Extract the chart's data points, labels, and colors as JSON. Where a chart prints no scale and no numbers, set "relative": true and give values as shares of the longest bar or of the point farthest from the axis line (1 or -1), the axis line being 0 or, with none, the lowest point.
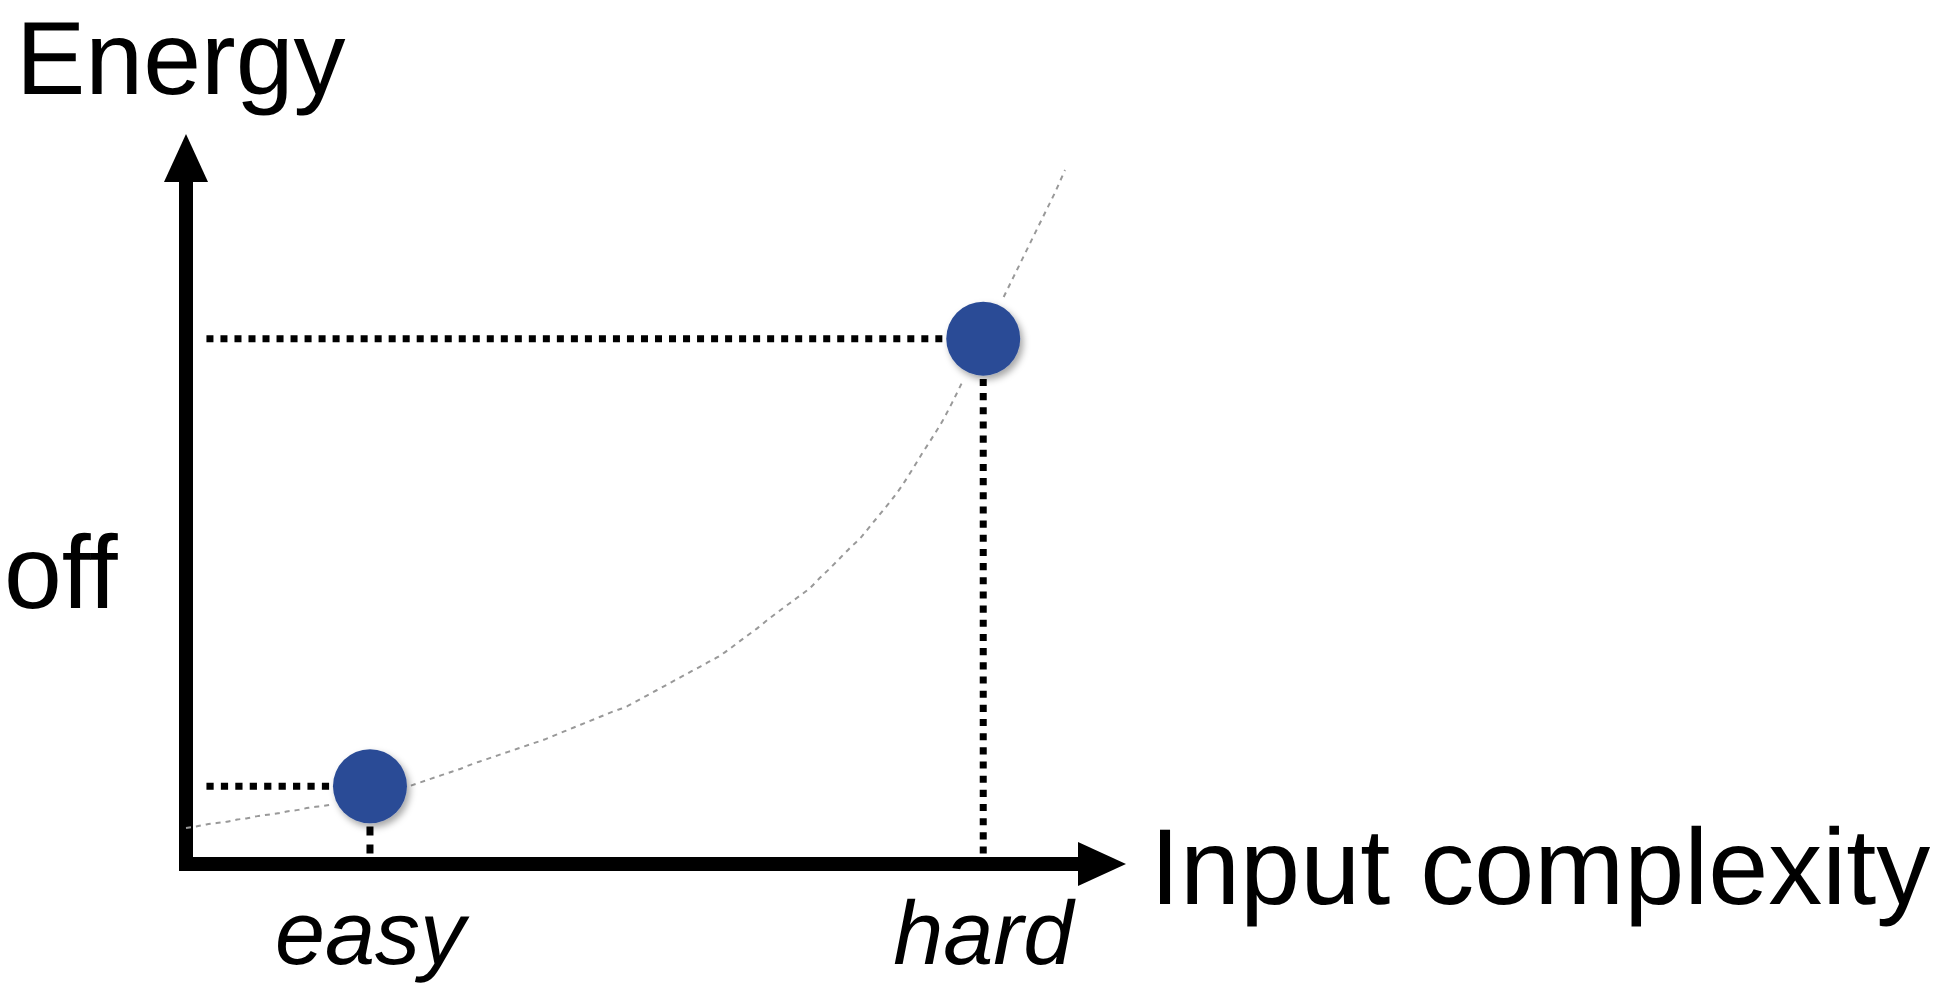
{
  "chart_data": {
    "type": "line",
    "relative": true,
    "xlabel": "Input complexity",
    "ylabel": "Energy",
    "annotations": [
      "off"
    ],
    "tick_labels": "x",
    "categories": [
      null,
      null,
      null,
      null,
      null,
      null,
      null,
      null,
      null,
      null,
      null,
      null,
      null,
      null,
      null,
      null,
      null,
      null,
      "easy",
      null,
      null,
      null,
      null,
      null,
      null,
      null,
      null,
      null,
      null,
      null,
      null,
      null,
      null,
      null,
      null,
      null,
      null,
      null,
      null,
      null,
      null,
      null,
      null,
      null,
      null,
      null,
      null,
      null,
      null,
      null,
      null,
      null,
      null,
      null,
      null,
      null,
      null,
      null,
      null,
      null,
      null,
      null,
      null,
      null,
      null,
      null,
      null,
      null,
      null,
      null,
      null,
      null,
      null,
      null,
      null,
      null,
      null,
      null,
      "hard",
      null,
      null,
      null,
      null,
      null,
      null,
      null,
      null
    ],
    "series": [
      {
        "color": "#000000",
        "line_style": "dotted",
        "values": [
          null,
          null,
          0.112,
          0.112,
          0.112,
          0.112,
          0.112,
          0.112,
          0.112,
          0.112,
          0.112,
          0.112,
          0.112,
          0.112,
          0.112,
          null,
          null,
          null,
          null,
          null,
          null,
          null,
          null,
          null,
          null,
          null,
          null,
          null,
          null,
          null,
          null,
          null,
          null,
          null,
          null,
          null,
          null,
          null,
          null,
          null,
          null,
          null,
          null,
          null,
          null,
          null,
          null,
          null,
          null,
          null,
          null,
          null,
          null,
          null,
          null,
          null,
          null,
          null,
          null,
          null,
          null,
          null,
          null,
          null,
          null,
          null,
          null,
          null,
          null,
          null,
          null,
          null,
          null,
          null,
          null,
          null,
          null,
          null,
          null,
          null,
          null,
          null,
          null,
          null,
          null,
          null,
          null
        ]
      },
      {
        "color": "#000000",
        "line_style": "dotted",
        "values": [
          null,
          null,
          0.757,
          0.757,
          0.757,
          0.757,
          0.757,
          0.757,
          0.757,
          0.757,
          0.757,
          0.757,
          0.757,
          0.757,
          0.757,
          0.757,
          0.757,
          0.757,
          0.757,
          0.757,
          0.757,
          0.757,
          0.757,
          0.757,
          0.757,
          0.757,
          0.757,
          0.757,
          0.757,
          0.757,
          0.757,
          0.757,
          0.757,
          0.757,
          0.757,
          0.757,
          0.757,
          0.757,
          0.757,
          0.757,
          0.757,
          0.757,
          0.757,
          0.757,
          0.757,
          0.757,
          0.757,
          0.757,
          0.757,
          0.757,
          0.757,
          0.757,
          0.757,
          0.757,
          0.757,
          0.757,
          0.757,
          0.757,
          0.757,
          0.757,
          0.757,
          0.757,
          0.757,
          0.757,
          0.757,
          0.757,
          0.757,
          0.757,
          0.757,
          0.757,
          0.757,
          0.757,
          0.757,
          0.757,
          0.757,
          null,
          null,
          null,
          null,
          null,
          null,
          null,
          null,
          null,
          null,
          null,
          null
        ]
      },
      {
        "color": "#000000",
        "line_style": "dotted",
        "x": [
          "easy",
          "easy"
        ],
        "values": [
          0.015,
          0.054
        ]
      },
      {
        "color": "#000000",
        "line_style": "dotted",
        "x": [
          "hard",
          "hard"
        ],
        "values": [
          0.015,
          0.699
        ]
      },
      {
        "color": "#999999",
        "line_style": "dashed",
        "values": [
          0.052,
          0.054,
          0.057,
          0.059,
          0.061,
          0.064,
          0.066,
          0.069,
          0.071,
          0.073,
          0.076,
          0.078,
          0.081,
          0.083,
          0.085,
          null,
          null,
          null,
          null,
          null,
          null,
          null,
          0.113,
          0.118,
          0.123,
          0.128,
          0.133,
          0.138,
          0.144,
          0.149,
          0.154,
          0.159,
          0.164,
          0.169,
          0.174,
          0.179,
          0.185,
          0.191,
          0.197,
          0.203,
          0.209,
          0.215,
          0.221,
          0.226,
          0.234,
          0.242,
          0.25,
          0.258,
          0.266,
          0.274,
          0.282,
          0.29,
          0.298,
          0.308,
          0.319,
          0.33,
          0.341,
          0.353,
          0.364,
          0.375,
          0.386,
          0.397,
          0.412,
          0.426,
          0.441,
          0.456,
          0.47,
          0.488,
          0.506,
          0.524,
          0.544,
          0.567,
          0.591,
          0.614,
          0.638,
          0.666,
          0.696,
          null,
          null,
          null,
          0.817,
          0.847,
          0.877,
          0.907,
          0.937,
          0.967,
          1.0
        ]
      },
      {
        "type": "scatter",
        "color": "#2b4c96",
        "marker": "circle",
        "values": [
          null,
          null,
          null,
          null,
          null,
          null,
          null,
          null,
          null,
          null,
          null,
          null,
          null,
          null,
          null,
          null,
          null,
          null,
          0.112,
          null,
          null,
          null,
          null,
          null,
          null,
          null,
          null,
          null,
          null,
          null,
          null,
          null,
          null,
          null,
          null,
          null,
          null,
          null,
          null,
          null,
          null,
          null,
          null,
          null,
          null,
          null,
          null,
          null,
          null,
          null,
          null,
          null,
          null,
          null,
          null,
          null,
          null,
          null,
          null,
          null,
          null,
          null,
          null,
          null,
          null,
          null,
          null,
          null,
          null,
          null,
          null,
          null,
          null,
          null,
          null,
          null,
          null,
          null,
          0.757,
          null,
          null,
          null,
          null,
          null,
          null,
          null,
          null
        ]
      }
    ]
  }
}
